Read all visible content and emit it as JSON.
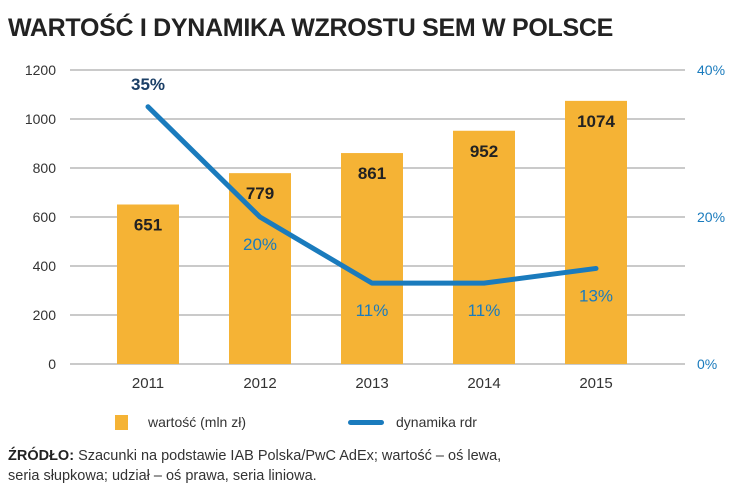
{
  "title": "WARTOŚĆ I DYNAMIKA WZROSTU SEM W POLSCE",
  "chart_data": {
    "type": "bar+line",
    "categories": [
      "2011",
      "2012",
      "2013",
      "2014",
      "2015"
    ],
    "series": [
      {
        "name": "wartość (mln zł)",
        "type": "bar",
        "axis": "left",
        "values": [
          651,
          779,
          861,
          952,
          1074
        ],
        "labels": [
          "651",
          "779",
          "861",
          "952",
          "1074"
        ],
        "color": "#F5B335"
      },
      {
        "name": "dynamika rdr",
        "type": "line",
        "axis": "right",
        "values": [
          35,
          20,
          11,
          11,
          13
        ],
        "labels": [
          "35%",
          "20%",
          "11%",
          "11%",
          "13%"
        ],
        "color": "#1A7BBD"
      }
    ],
    "left_axis": {
      "ylim": [
        0,
        1200
      ],
      "ticks": [
        "0",
        "200",
        "400",
        "600",
        "800",
        "1000",
        "1200"
      ]
    },
    "right_axis": {
      "ylim": [
        0,
        40
      ],
      "ticks": [
        "0%",
        "20%",
        "40%"
      ],
      "color": "#1A7BBD"
    },
    "grid": true,
    "legend_position": "bottom"
  },
  "legend": {
    "bar": "wartość (mln zł)",
    "line": "dynamika rdr"
  },
  "source": {
    "label": "ŹRÓDŁO:",
    "text": " Szacunki na podstawie IAB Polska/PwC AdEx; wartość – oś lewa, seria słupkowa; udział – oś prawa, seria liniowa."
  }
}
